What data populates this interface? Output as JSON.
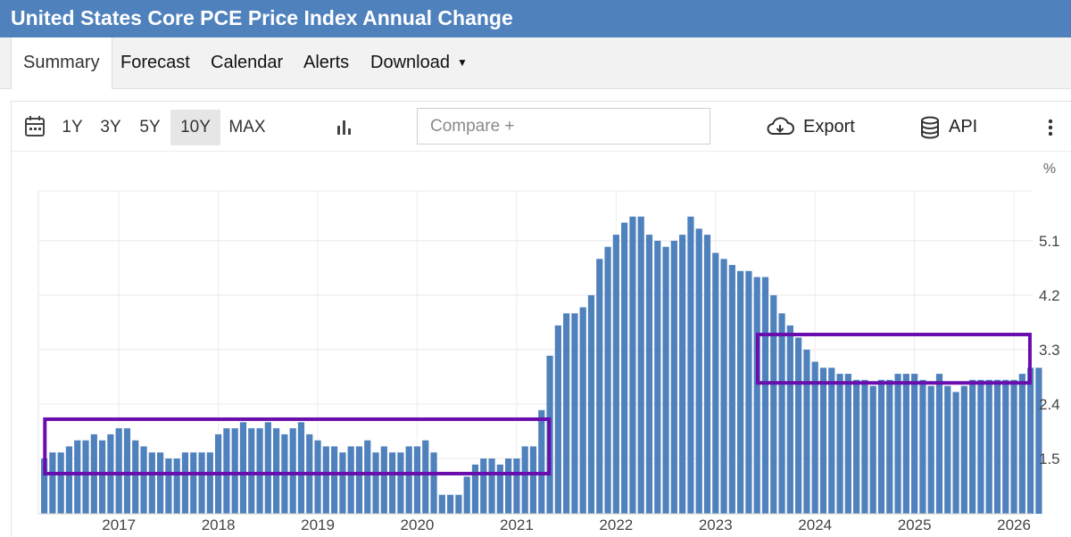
{
  "header": {
    "title": "United States Core PCE Price Index Annual Change"
  },
  "tabs": [
    {
      "label": "Summary"
    },
    {
      "label": "Forecast"
    },
    {
      "label": "Calendar"
    },
    {
      "label": "Alerts"
    },
    {
      "label": "Download"
    }
  ],
  "toolbar": {
    "ranges": [
      "1Y",
      "3Y",
      "5Y",
      "10Y",
      "MAX"
    ],
    "selected_range": "10Y",
    "compare_placeholder": "Compare +",
    "export_label": "Export",
    "api_label": "API"
  },
  "colors": {
    "bar": "#4f81bd",
    "title_bg": "#4f81bd",
    "highlight": "#6a0dad"
  },
  "chart_data": {
    "type": "bar",
    "title": "United States Core PCE Price Index Annual Change",
    "unit_label": "%",
    "xlabel": "",
    "ylabel": "%",
    "ylim": [
      0.5,
      5.7
    ],
    "yticks": [
      1.5,
      2.4,
      3.3,
      4.2,
      5.1
    ],
    "year_labels": [
      "2017",
      "2018",
      "2019",
      "2020",
      "2021",
      "2022",
      "2023",
      "2024",
      "2025",
      "2026"
    ],
    "first_period": "2016-04",
    "values": [
      1.5,
      1.6,
      1.6,
      1.7,
      1.8,
      1.8,
      1.9,
      1.8,
      1.9,
      2.0,
      2.0,
      1.8,
      1.7,
      1.6,
      1.6,
      1.5,
      1.5,
      1.6,
      1.6,
      1.6,
      1.6,
      1.9,
      2.0,
      2.0,
      2.1,
      2.0,
      2.0,
      2.1,
      2.0,
      1.9,
      2.0,
      2.1,
      1.9,
      1.8,
      1.7,
      1.7,
      1.6,
      1.7,
      1.7,
      1.8,
      1.6,
      1.7,
      1.6,
      1.6,
      1.7,
      1.7,
      1.8,
      1.6,
      0.9,
      0.9,
      0.9,
      1.2,
      1.4,
      1.5,
      1.5,
      1.4,
      1.5,
      1.5,
      1.7,
      1.7,
      2.3,
      3.2,
      3.7,
      3.9,
      3.9,
      4.0,
      4.2,
      4.8,
      5.0,
      5.2,
      5.4,
      5.5,
      5.5,
      5.2,
      5.1,
      5.0,
      5.1,
      5.2,
      5.5,
      5.3,
      5.2,
      4.9,
      4.8,
      4.7,
      4.6,
      4.6,
      4.5,
      4.5,
      4.2,
      3.9,
      3.7,
      3.5,
      3.3,
      3.1,
      3.0,
      3.0,
      2.9,
      2.9,
      2.8,
      2.8,
      2.7,
      2.8,
      2.8,
      2.9,
      2.9,
      2.9,
      2.8,
      2.7,
      2.9,
      2.7,
      2.6,
      2.7,
      2.8,
      2.8,
      2.8,
      2.8,
      2.8,
      2.8,
      2.9,
      3.0,
      3.0
    ],
    "annotations": [
      {
        "kind": "highlight-box",
        "from": "2016-05",
        "to": "2021-04",
        "y_range": [
          1.25,
          2.15
        ]
      },
      {
        "kind": "highlight-box",
        "from": "2023-07",
        "to": "2026-02",
        "y_range": [
          2.75,
          3.55
        ]
      }
    ]
  }
}
